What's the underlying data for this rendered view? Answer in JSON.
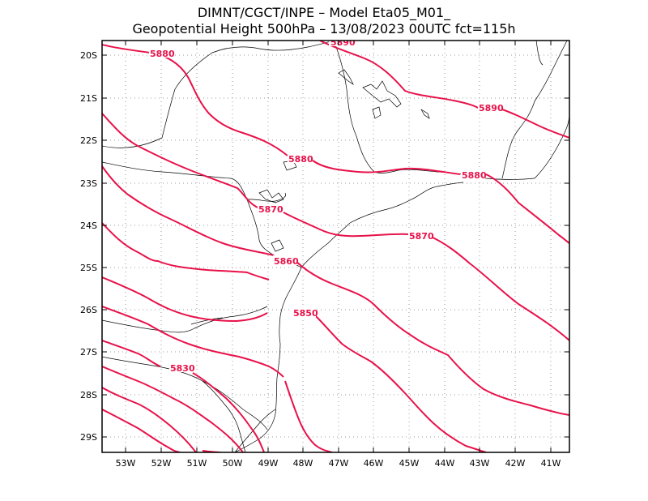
{
  "header": {
    "line1": "DIMNT/CGCT/INPE –   Model Eta05_M01_",
    "line2": "Geopotential Height 500hPa –   13/08/2023 00UTC fct=115h"
  },
  "axes": {
    "lat_labels": [
      "20S",
      "21S",
      "22S",
      "23S",
      "24S",
      "25S",
      "26S",
      "27S",
      "28S",
      "29S"
    ],
    "lon_labels": [
      "53W",
      "52W",
      "51W",
      "50W",
      "49W",
      "48W",
      "47W",
      "46W",
      "45W",
      "44W",
      "43W",
      "42W",
      "41W"
    ]
  },
  "contours": {
    "color": "#e8124a",
    "labels": [
      "5890",
      "5890",
      "5880",
      "5880",
      "5880",
      "5870",
      "5870",
      "5860",
      "5850",
      "5830"
    ]
  },
  "colors": {
    "frame": "#000000",
    "grid": "#999999",
    "coast": "#000000"
  }
}
